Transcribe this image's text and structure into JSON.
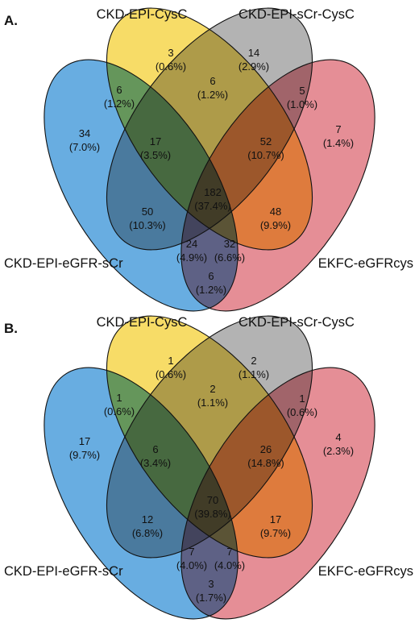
{
  "colors": {
    "ckd_epi_egfr_scr": "#4d9fdc",
    "ckd_epi_cysc": "#f6d64c",
    "ckd_epi_scr_cysc": "#a6a6a6",
    "ekfc_egfrcys": "#e07a84",
    "outline": "#111111"
  },
  "panels": [
    {
      "id": "A",
      "letter": "A.",
      "sets": {
        "ckd_epi_egfr_scr": "CKD-EPI-eGFR-sCr",
        "ckd_epi_cysc": "CKD-EPI-CysC",
        "ckd_epi_scr_cysc": "CKD-EPI-sCr-CysC",
        "ekfc_egfrcys": "EKFC-eGFRcys"
      },
      "regions": {
        "only_scr": {
          "count": "34",
          "pct": "(7.0%)"
        },
        "only_cysc": {
          "count": "3",
          "pct": "(0.6%)"
        },
        "only_scrcysc": {
          "count": "14",
          "pct": "(2.9%)"
        },
        "only_ekfc": {
          "count": "7",
          "pct": "(1.4%)"
        },
        "scr_cysc": {
          "count": "6",
          "pct": "(1.2%)"
        },
        "cysc_scrcysc": {
          "count": "6",
          "pct": "(1.2%)"
        },
        "scrcysc_ekfc": {
          "count": "5",
          "pct": "(1.0%)"
        },
        "scr_cysc_scrcysc": {
          "count": "17",
          "pct": "(3.5%)"
        },
        "cysc_scrcysc_ekfc": {
          "count": "52",
          "pct": "(10.7%)"
        },
        "all_four": {
          "count": "182",
          "pct": "(37.4%)"
        },
        "scr_scrcysc": {
          "count": "50",
          "pct": "(10.3%)"
        },
        "cysc_ekfc": {
          "count": "48",
          "pct": "(9.9%)"
        },
        "scr_scrcysc_ekfc": {
          "count": "24",
          "pct": "(4.9%)"
        },
        "scr_cysc_ekfc": {
          "count": "32",
          "pct": "(6.6%)"
        },
        "scr_ekfc": {
          "count": "6",
          "pct": "(1.2%)"
        }
      }
    },
    {
      "id": "B",
      "letter": "B.",
      "sets": {
        "ckd_epi_egfr_scr": "CKD-EPI-eGFR-sCr",
        "ckd_epi_cysc": "CKD-EPI-CysC",
        "ckd_epi_scr_cysc": "CKD-EPI-sCr-CysC",
        "ekfc_egfrcys": "EKFC-eGFRcys"
      },
      "regions": {
        "only_scr": {
          "count": "17",
          "pct": "(9.7%)"
        },
        "only_cysc": {
          "count": "1",
          "pct": "(0.6%)"
        },
        "only_scrcysc": {
          "count": "2",
          "pct": "(1.1%)"
        },
        "only_ekfc": {
          "count": "4",
          "pct": "(2.3%)"
        },
        "scr_cysc": {
          "count": "1",
          "pct": "(0.6%)"
        },
        "cysc_scrcysc": {
          "count": "2",
          "pct": "(1.1%)"
        },
        "scrcysc_ekfc": {
          "count": "1",
          "pct": "(0.6%)"
        },
        "scr_cysc_scrcysc": {
          "count": "6",
          "pct": "(3.4%)"
        },
        "cysc_scrcysc_ekfc": {
          "count": "26",
          "pct": "(14.8%)"
        },
        "all_four": {
          "count": "70",
          "pct": "(39.8%)"
        },
        "scr_scrcysc": {
          "count": "12",
          "pct": "(6.8%)"
        },
        "cysc_ekfc": {
          "count": "17",
          "pct": "(9.7%)"
        },
        "scr_scrcysc_ekfc": {
          "count": "7",
          "pct": "(4.0%)"
        },
        "scr_cysc_ekfc": {
          "count": "7",
          "pct": "(4.0%)"
        },
        "scr_ekfc": {
          "count": "3",
          "pct": "(1.7%)"
        }
      }
    }
  ]
}
